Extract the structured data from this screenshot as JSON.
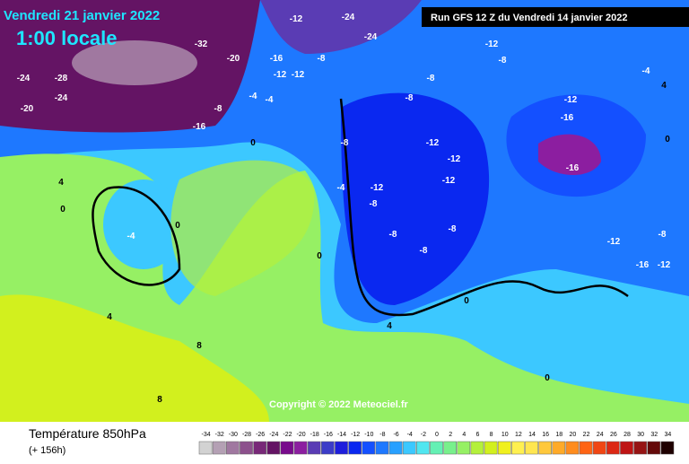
{
  "header": {
    "date": "Vendredi 21 janvier 2022",
    "time": "1:00 locale",
    "run": "Run GFS 12 Z du Vendredi 14 janvier 2022",
    "copyright": "Copyright © 2022 Meteociel.fr"
  },
  "footer": {
    "title": "Température 850hPa",
    "lead": "(+ 156h)"
  },
  "scale": {
    "values": [
      -34,
      -32,
      -30,
      -28,
      -26,
      -24,
      -22,
      -20,
      -18,
      -16,
      -14,
      -12,
      -10,
      -8,
      -6,
      -4,
      -2,
      0,
      2,
      4,
      6,
      8,
      10,
      12,
      14,
      16,
      18,
      20,
      22,
      24,
      26,
      28,
      30,
      32,
      34
    ],
    "colors": [
      "#d2d2d2",
      "#b4a0b4",
      "#a078a0",
      "#8c508c",
      "#782878",
      "#641464",
      "#780a8c",
      "#8c1ea0",
      "#5a3cb4",
      "#3c3cc8",
      "#1e1edc",
      "#0a28f0",
      "#1450ff",
      "#1e78ff",
      "#28a0ff",
      "#3cc8ff",
      "#50e6f0",
      "#64f0b4",
      "#78f08c",
      "#96f064",
      "#b4f03c",
      "#d2f01e",
      "#f0f01e",
      "#fff050",
      "#ffe650",
      "#ffc83c",
      "#ffaa28",
      "#ff8c1e",
      "#ff6414",
      "#f04614",
      "#dc2814",
      "#be1414",
      "#961414",
      "#640a0a",
      "#1e0000"
    ]
  },
  "map": {
    "labels": [
      -24,
      -12,
      -24,
      -20,
      -16,
      -12,
      -12,
      -8,
      -4,
      -4,
      -8,
      -16,
      -24,
      -24,
      -20,
      -28,
      -32,
      -12,
      -8,
      -8,
      -8,
      -12,
      -16,
      -16,
      -12,
      -12,
      -12,
      -12,
      -8,
      -8,
      -4,
      0,
      0,
      -4,
      4,
      0,
      4,
      8,
      8,
      0,
      0,
      -4,
      4,
      0,
      -8,
      -12,
      -16,
      -12,
      4,
      0,
      -8,
      -8,
      -8
    ]
  }
}
